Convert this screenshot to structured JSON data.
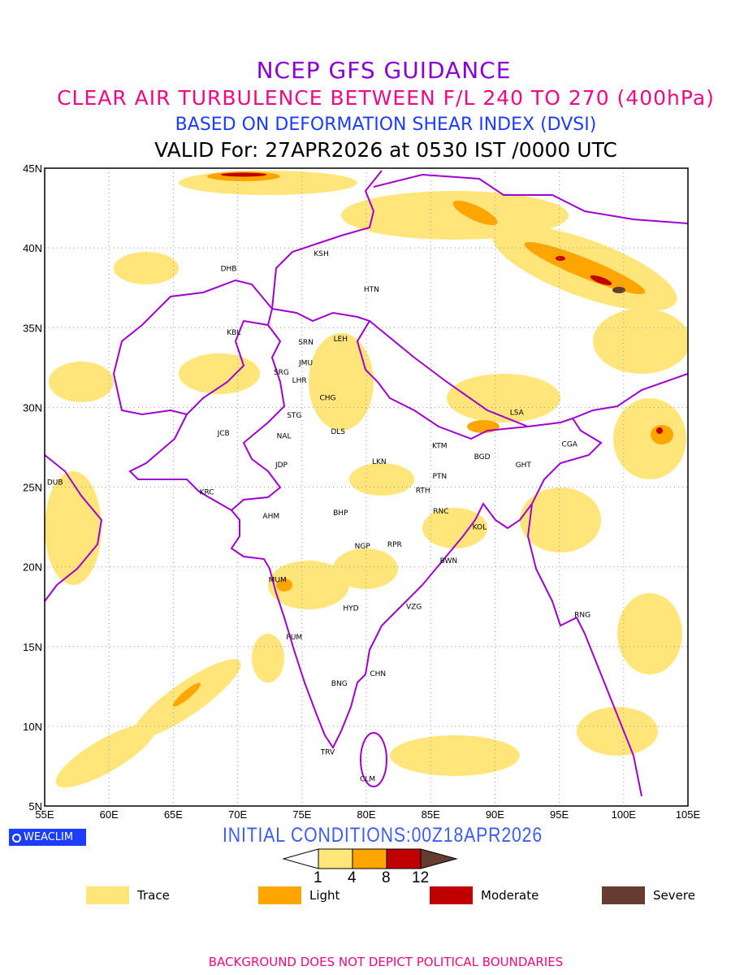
{
  "titles": {
    "line1": "NCEP GFS GUIDANCE",
    "line2": "CLEAR AIR TURBULENCE BETWEEN F/L 240 TO 270 (400hPa)",
    "line3": "BASED ON DEFORMATION SHEAR INDEX (DVSI)",
    "line4": "VALID For: 27APR2026 at 0530 IST /0000 UTC"
  },
  "map": {
    "lon_range": [
      55,
      105
    ],
    "lat_range": [
      5,
      45
    ],
    "lon_ticks": [
      "55E",
      "60E",
      "65E",
      "70E",
      "75E",
      "80E",
      "85E",
      "90E",
      "95E",
      "100E",
      "105E"
    ],
    "lat_ticks": [
      "5N",
      "10N",
      "15N",
      "20N",
      "25N",
      "30N",
      "35N",
      "40N",
      "45N"
    ],
    "stations": [
      {
        "code": "KSH",
        "lon": 76.5,
        "lat": 39.65
      },
      {
        "code": "DHB",
        "lon": 69.3,
        "lat": 38.7
      },
      {
        "code": "HTN",
        "lon": 80.4,
        "lat": 37.4
      },
      {
        "code": "KBL",
        "lon": 69.7,
        "lat": 34.7
      },
      {
        "code": "SRN",
        "lon": 75.3,
        "lat": 34.1
      },
      {
        "code": "LEH",
        "lon": 78.0,
        "lat": 34.3
      },
      {
        "code": "JMU",
        "lon": 75.3,
        "lat": 32.8
      },
      {
        "code": "SRG",
        "lon": 73.4,
        "lat": 32.2
      },
      {
        "code": "LHR",
        "lon": 74.8,
        "lat": 31.7
      },
      {
        "code": "CHG",
        "lon": 77.0,
        "lat": 30.6
      },
      {
        "code": "STG",
        "lon": 74.4,
        "lat": 29.5
      },
      {
        "code": "LSA",
        "lon": 91.7,
        "lat": 29.7
      },
      {
        "code": "JCB",
        "lon": 68.9,
        "lat": 28.4
      },
      {
        "code": "NAL",
        "lon": 73.6,
        "lat": 28.2
      },
      {
        "code": "DLS",
        "lon": 77.8,
        "lat": 28.5
      },
      {
        "code": "KTM",
        "lon": 85.7,
        "lat": 27.6
      },
      {
        "code": "CGA",
        "lon": 95.8,
        "lat": 27.7
      },
      {
        "code": "BGD",
        "lon": 89.0,
        "lat": 26.9
      },
      {
        "code": "GHT",
        "lon": 92.2,
        "lat": 26.4
      },
      {
        "code": "JDP",
        "lon": 73.4,
        "lat": 26.4
      },
      {
        "code": "LKN",
        "lon": 81.0,
        "lat": 26.6
      },
      {
        "code": "DUB",
        "lon": 55.8,
        "lat": 25.3
      },
      {
        "code": "PTN",
        "lon": 85.7,
        "lat": 25.7
      },
      {
        "code": "KRC",
        "lon": 67.6,
        "lat": 24.7
      },
      {
        "code": "RTH",
        "lon": 84.4,
        "lat": 24.8
      },
      {
        "code": "AHM",
        "lon": 72.6,
        "lat": 23.2
      },
      {
        "code": "BHP",
        "lon": 78.0,
        "lat": 23.4
      },
      {
        "code": "RNC",
        "lon": 85.8,
        "lat": 23.5
      },
      {
        "code": "KOL",
        "lon": 88.8,
        "lat": 22.5
      },
      {
        "code": "NGP",
        "lon": 79.7,
        "lat": 21.3
      },
      {
        "code": "RPR",
        "lon": 82.2,
        "lat": 21.4
      },
      {
        "code": "BWN",
        "lon": 86.4,
        "lat": 20.4
      },
      {
        "code": "MUM",
        "lon": 73.1,
        "lat": 19.2
      },
      {
        "code": "HYD",
        "lon": 78.8,
        "lat": 17.4
      },
      {
        "code": "VZG",
        "lon": 83.7,
        "lat": 17.5
      },
      {
        "code": "RNG",
        "lon": 96.8,
        "lat": 17.0
      },
      {
        "code": "PUM",
        "lon": 74.4,
        "lat": 15.6
      },
      {
        "code": "CHN",
        "lon": 80.9,
        "lat": 13.3
      },
      {
        "code": "BNG",
        "lon": 77.9,
        "lat": 12.7
      },
      {
        "code": "TRV",
        "lon": 77.0,
        "lat": 8.4
      },
      {
        "code": "CLM",
        "lon": 80.1,
        "lat": 6.7
      }
    ]
  },
  "branding": {
    "logo": "WEACLIM",
    "initial_conditions": "INITIAL CONDITIONS:00Z18APR2026"
  },
  "colorbar": {
    "levels": [
      "1",
      "4",
      "8",
      "12"
    ],
    "colors": {
      "trace": "#ffe57a",
      "light": "#ffa500",
      "moderate": "#c00000",
      "severe": "#673c30"
    }
  },
  "legend": [
    {
      "label": "Trace",
      "color": "#ffe57a"
    },
    {
      "label": "Light",
      "color": "#ffa500"
    },
    {
      "label": "Moderate",
      "color": "#c00000"
    },
    {
      "label": "Severe",
      "color": "#673c30"
    }
  ],
  "footer": "BACKGROUND DOES NOT DEPICT POLITICAL BOUNDARIES"
}
